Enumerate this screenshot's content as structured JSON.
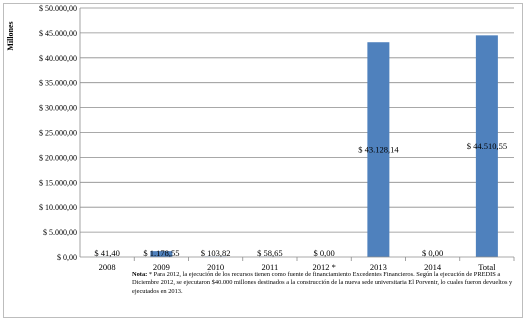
{
  "chart_data": {
    "type": "bar",
    "title": "",
    "xlabel": "",
    "ylabel": "Millones",
    "ylim": [
      0,
      50000
    ],
    "grid": true,
    "yticks": [
      "$ 0,00",
      "$ 5.000,00",
      "$ 10.000,00",
      "$ 15.000,00",
      "$ 20.000,00",
      "$ 25.000,00",
      "$ 30.000,00",
      "$ 35.000,00",
      "$ 40.000,00",
      "$ 45.000,00",
      "$ 50.000,00"
    ],
    "categories": [
      "2008",
      "2009",
      "2010",
      "2011",
      "2012 *",
      "2013",
      "2014",
      "Total"
    ],
    "values": [
      41.4,
      1178.55,
      103.82,
      58.65,
      0.0,
      43128.14,
      0.0,
      44510.55
    ],
    "data_labels": [
      "$ 41,40",
      "$ 1.178,55",
      "$ 103,82",
      "$ 58,65",
      "$ 0,00",
      "$ 43.128,14",
      "$ 0,00",
      "$ 44.510,55"
    ],
    "bar_color": "#4f81bd"
  },
  "note": {
    "label": "Nota:",
    "text": "* Para 2012, la ejecución de los recursos tienen como fuente de financiamiento Excedentes Financieros. Según la ejecución de PREDIS a Diciembre 2012, se ejecutaron $40.000 millones destinados a la construcción de la nueva sede universitaria El Porvenir, lo cuales fueron devueltos y ejecutados en 2013."
  }
}
